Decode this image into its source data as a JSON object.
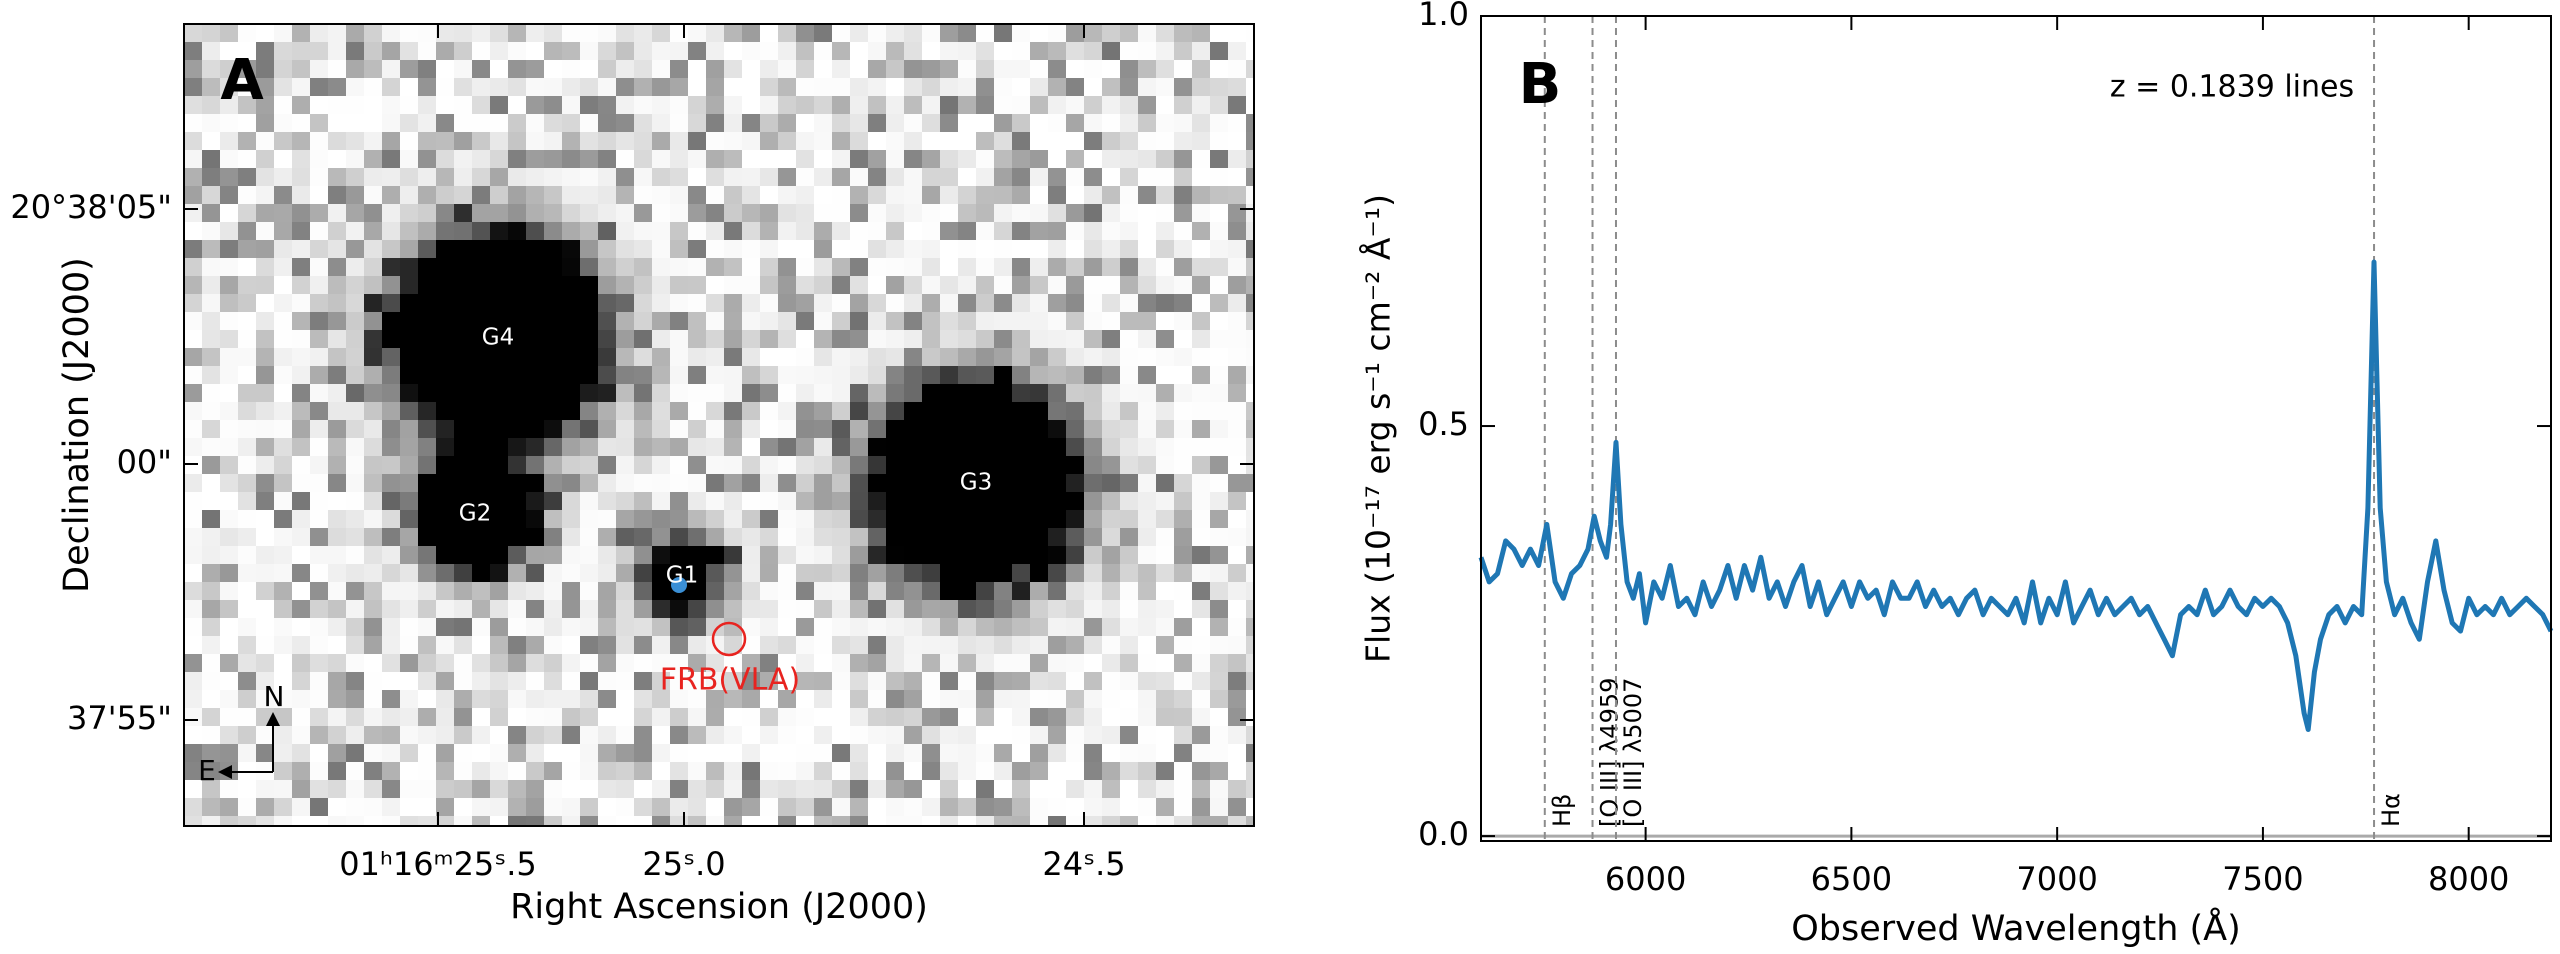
{
  "chart_data": [
    {
      "type": "image",
      "label": "A",
      "xlabel": "Right Ascension (J2000)",
      "ylabel": "Declination (J2000)",
      "xticks": [
        "01ʰ16ᵐ25ˢ.5",
        "25ˢ.0",
        "24ˢ.5"
      ],
      "yticks": [
        "20°38'05\"",
        "00\"",
        "37'55\""
      ],
      "sources": [
        "G4",
        "G2",
        "G1",
        "G3"
      ],
      "annotation": "FRB(VLA)",
      "annotation_color": "#e8231f",
      "compass": [
        "N",
        "E"
      ]
    },
    {
      "type": "line",
      "label": "B",
      "xlabel": "Observed Wavelength (Å)",
      "ylabel": "Flux (10⁻¹⁷ erg s⁻¹ cm⁻² Å⁻¹)",
      "annotation": "z = 0.1839 lines",
      "xlim": [
        5600,
        8200
      ],
      "ylim": [
        -0.006,
        1.0
      ],
      "xticks": [
        6000,
        6500,
        7000,
        7500,
        8000
      ],
      "yticks": [
        {
          "value": 0,
          "label": "0.0"
        },
        0.5,
        {
          "value": 1,
          "label": "1.0"
        }
      ],
      "vlines": [
        {
          "x": 5755,
          "label": "Hβ"
        },
        {
          "x": 5871,
          "label": "[O III] λ4959"
        },
        {
          "x": 5928,
          "label": "[O III] λ5007"
        },
        {
          "x": 7770,
          "label": "Hα"
        }
      ],
      "vline_color": "#8c8c8c",
      "color": "#1f77b4",
      "x": [
        5600,
        5620,
        5640,
        5660,
        5680,
        5700,
        5720,
        5740,
        5760,
        5780,
        5800,
        5820,
        5840,
        5860,
        5875,
        5890,
        5905,
        5915,
        5928,
        5940,
        5955,
        5970,
        5985,
        6000,
        6020,
        6040,
        6060,
        6080,
        6100,
        6120,
        6140,
        6160,
        6180,
        6200,
        6220,
        6240,
        6260,
        6280,
        6300,
        6320,
        6340,
        6360,
        6380,
        6400,
        6420,
        6440,
        6460,
        6480,
        6500,
        6520,
        6540,
        6560,
        6580,
        6600,
        6620,
        6640,
        6660,
        6680,
        6700,
        6720,
        6740,
        6760,
        6780,
        6800,
        6820,
        6840,
        6860,
        6880,
        6900,
        6920,
        6940,
        6960,
        6980,
        7000,
        7020,
        7040,
        7060,
        7080,
        7100,
        7120,
        7140,
        7160,
        7180,
        7200,
        7220,
        7240,
        7260,
        7280,
        7300,
        7320,
        7340,
        7360,
        7380,
        7400,
        7420,
        7440,
        7460,
        7480,
        7500,
        7520,
        7540,
        7560,
        7580,
        7600,
        7610,
        7625,
        7640,
        7660,
        7680,
        7700,
        7720,
        7740,
        7755,
        7770,
        7785,
        7800,
        7820,
        7840,
        7860,
        7880,
        7900,
        7920,
        7940,
        7960,
        7980,
        8000,
        8020,
        8040,
        8060,
        8080,
        8100,
        8120,
        8140,
        8160,
        8180,
        8200
      ],
      "values": [
        0.34,
        0.31,
        0.32,
        0.36,
        0.35,
        0.33,
        0.35,
        0.33,
        0.38,
        0.31,
        0.29,
        0.32,
        0.33,
        0.35,
        0.39,
        0.36,
        0.34,
        0.38,
        0.48,
        0.38,
        0.31,
        0.29,
        0.32,
        0.26,
        0.31,
        0.29,
        0.33,
        0.28,
        0.29,
        0.27,
        0.31,
        0.28,
        0.3,
        0.33,
        0.29,
        0.33,
        0.3,
        0.34,
        0.29,
        0.31,
        0.28,
        0.31,
        0.33,
        0.28,
        0.31,
        0.27,
        0.29,
        0.31,
        0.28,
        0.31,
        0.29,
        0.3,
        0.27,
        0.31,
        0.29,
        0.29,
        0.31,
        0.28,
        0.3,
        0.28,
        0.29,
        0.27,
        0.29,
        0.3,
        0.27,
        0.29,
        0.28,
        0.27,
        0.29,
        0.26,
        0.31,
        0.26,
        0.29,
        0.27,
        0.31,
        0.26,
        0.28,
        0.3,
        0.27,
        0.29,
        0.27,
        0.28,
        0.29,
        0.27,
        0.28,
        0.26,
        0.24,
        0.22,
        0.27,
        0.28,
        0.27,
        0.3,
        0.27,
        0.28,
        0.3,
        0.28,
        0.27,
        0.29,
        0.28,
        0.29,
        0.28,
        0.26,
        0.22,
        0.15,
        0.13,
        0.2,
        0.24,
        0.27,
        0.28,
        0.26,
        0.28,
        0.27,
        0.4,
        0.7,
        0.4,
        0.31,
        0.27,
        0.29,
        0.26,
        0.24,
        0.31,
        0.36,
        0.3,
        0.26,
        0.25,
        0.29,
        0.27,
        0.28,
        0.27,
        0.29,
        0.27,
        0.28,
        0.29,
        0.28,
        0.27,
        0.25
      ]
    }
  ]
}
